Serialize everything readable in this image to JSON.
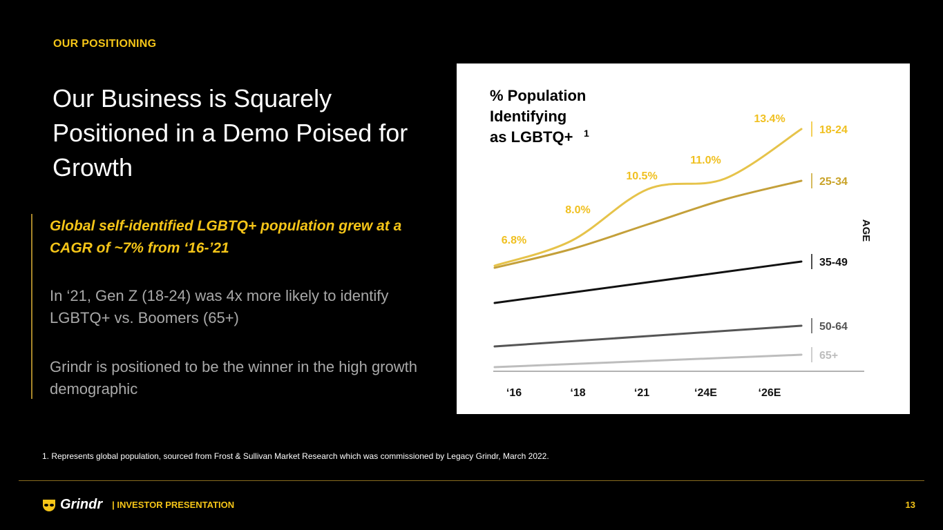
{
  "header": {
    "kicker": "OUR POSITIONING",
    "title": "Our Business is Squarely Positioned in a Demo Poised for Growth"
  },
  "body": {
    "highlight": "Global self-identified LGBTQ+ population grew at a CAGR of ~7% from ‘16-’21",
    "paragraph1": "In ‘21, Gen Z (18-24) was 4x more likely to identify LGBTQ+ vs. Boomers (65+)",
    "paragraph2": "Grindr is positioned to be the winner in the high growth demographic"
  },
  "footnote": "1. Represents global population, sourced from Frost & Sullivan Market Research which was commissioned by Legacy Grindr, March 2022.",
  "footer": {
    "brand": "Grindr",
    "label": "|  INVESTOR PRESENTATION",
    "page": "13"
  },
  "colors": {
    "accent": "#f5c518",
    "background": "#000000"
  },
  "chart_data": {
    "type": "line",
    "title_lines": [
      "% Population",
      "Identifying",
      "as LGBTQ+"
    ],
    "title_superscript": "1",
    "categories": [
      "‘16",
      "‘18",
      "‘21",
      "‘24E",
      "‘26E"
    ],
    "legend_title": "AGE",
    "ylabel": "",
    "xlabel": "",
    "ylim": [
      1.5,
      14
    ],
    "grid": false,
    "series": [
      {
        "name": "18-24",
        "color": "#e6c34a",
        "label_color": "#f0c020",
        "values": [
          6.8,
          8.0,
          10.5,
          11.0,
          13.4
        ],
        "data_labels": [
          "6.8%",
          "8.0%",
          "10.5%",
          "11.0%",
          "13.4%"
        ]
      },
      {
        "name": "25-34",
        "color": "#c4a03a",
        "label_color": "#c9a227",
        "values": [
          6.7,
          7.6,
          8.8,
          10.0,
          10.9
        ]
      },
      {
        "name": "35-49",
        "color": "#111111",
        "label_color": "#111111",
        "values": [
          5.0,
          5.5,
          6.0,
          6.5,
          7.0
        ]
      },
      {
        "name": "50-64",
        "color": "#555555",
        "label_color": "#555555",
        "values": [
          2.9,
          3.15,
          3.4,
          3.65,
          3.9
        ]
      },
      {
        "name": "65+",
        "color": "#bdbdbd",
        "label_color": "#bdbdbd",
        "values": [
          1.9,
          2.05,
          2.2,
          2.35,
          2.5
        ]
      }
    ]
  }
}
